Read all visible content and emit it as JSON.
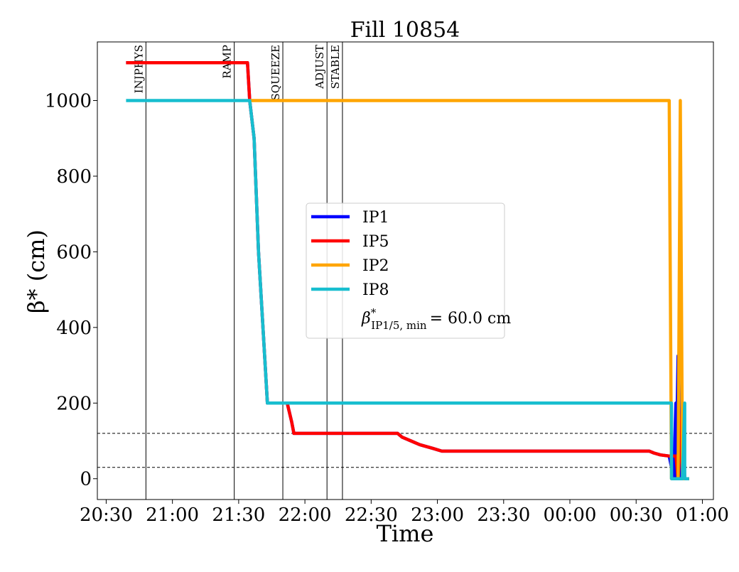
{
  "chart_data": {
    "type": "line",
    "title": "Fill 10854",
    "xlabel": "Time",
    "ylabel": "β* (cm)",
    "xlim": [
      "20:26",
      "01:05"
    ],
    "ylim": [
      -55,
      1155
    ],
    "x_ticks": [
      "20:30",
      "21:00",
      "21:30",
      "22:00",
      "22:30",
      "23:00",
      "23:30",
      "00:00",
      "00:30",
      "01:00"
    ],
    "y_ticks": [
      0,
      200,
      400,
      600,
      800,
      1000
    ],
    "grid": false,
    "legend_position": "center",
    "phases": [
      {
        "label": "INJPHYS",
        "time": "20:48"
      },
      {
        "label": "RAMP",
        "time": "21:28"
      },
      {
        "label": "SQUEEZE",
        "time": "21:50"
      },
      {
        "label": "ADJUST",
        "time": "22:10"
      },
      {
        "label": "STABLE",
        "time": "22:17"
      }
    ],
    "reference_lines": [
      120,
      30
    ],
    "legend_entries": [
      "IP1",
      "IP5",
      "IP2",
      "IP8"
    ],
    "legend_extra": {
      "symbol": "β",
      "superscript": "*",
      "subscript": "IP1/5, min",
      "value_text": "= 60.0 cm"
    },
    "series": [
      {
        "name": "IP1",
        "color": "#0000ff",
        "points": [
          [
            "20:39",
            1100
          ],
          [
            "21:34",
            1100
          ],
          [
            "21:35",
            1000
          ],
          [
            "21:37",
            900
          ],
          [
            "21:39",
            600
          ],
          [
            "21:42",
            300
          ],
          [
            "21:43",
            200
          ],
          [
            "21:52",
            200
          ],
          [
            "21:54",
            150
          ],
          [
            "21:55",
            120
          ],
          [
            "22:42",
            120
          ],
          [
            "22:44",
            110
          ],
          [
            "22:48",
            100
          ],
          [
            "22:52",
            90
          ],
          [
            "22:58",
            80
          ],
          [
            "23:02",
            73
          ],
          [
            "00:36",
            73
          ],
          [
            "00:38",
            68
          ],
          [
            "00:41",
            63
          ],
          [
            "00:45",
            60
          ],
          [
            "00:47",
            0
          ],
          [
            "00:48",
            200
          ],
          [
            "00:48",
            0
          ],
          [
            "00:49",
            325
          ],
          [
            "00:50",
            0
          ],
          [
            "00:54",
            0
          ]
        ]
      },
      {
        "name": "IP5",
        "color": "#ff0000",
        "points": [
          [
            "20:39",
            1100
          ],
          [
            "21:34",
            1100
          ],
          [
            "21:35",
            1000
          ],
          [
            "21:37",
            900
          ],
          [
            "21:39",
            600
          ],
          [
            "21:42",
            300
          ],
          [
            "21:43",
            200
          ],
          [
            "21:52",
            200
          ],
          [
            "21:54",
            150
          ],
          [
            "21:55",
            120
          ],
          [
            "22:42",
            120
          ],
          [
            "22:44",
            110
          ],
          [
            "22:48",
            100
          ],
          [
            "22:52",
            90
          ],
          [
            "22:58",
            80
          ],
          [
            "23:02",
            73
          ],
          [
            "00:36",
            73
          ],
          [
            "00:38",
            68
          ],
          [
            "00:41",
            63
          ],
          [
            "00:45",
            60
          ],
          [
            "00:48",
            60
          ],
          [
            "00:49",
            0
          ],
          [
            "00:51",
            200
          ],
          [
            "00:52",
            0
          ],
          [
            "00:54",
            0
          ]
        ]
      },
      {
        "name": "IP2",
        "color": "#ffa500",
        "points": [
          [
            "21:35",
            1000
          ],
          [
            "00:45",
            1000
          ],
          [
            "00:46",
            0
          ],
          [
            "00:49",
            0
          ],
          [
            "00:50",
            1000
          ],
          [
            "00:51",
            0
          ],
          [
            "00:54",
            0
          ]
        ]
      },
      {
        "name": "IP8",
        "color": "#17becf",
        "points": [
          [
            "20:39",
            1000
          ],
          [
            "21:35",
            1000
          ],
          [
            "21:37",
            900
          ],
          [
            "21:39",
            600
          ],
          [
            "21:42",
            300
          ],
          [
            "21:43",
            200
          ],
          [
            "00:46",
            200
          ],
          [
            "00:46",
            0
          ],
          [
            "00:51",
            0
          ],
          [
            "00:52",
            200
          ],
          [
            "00:52",
            0
          ],
          [
            "00:54",
            0
          ]
        ]
      }
    ]
  }
}
